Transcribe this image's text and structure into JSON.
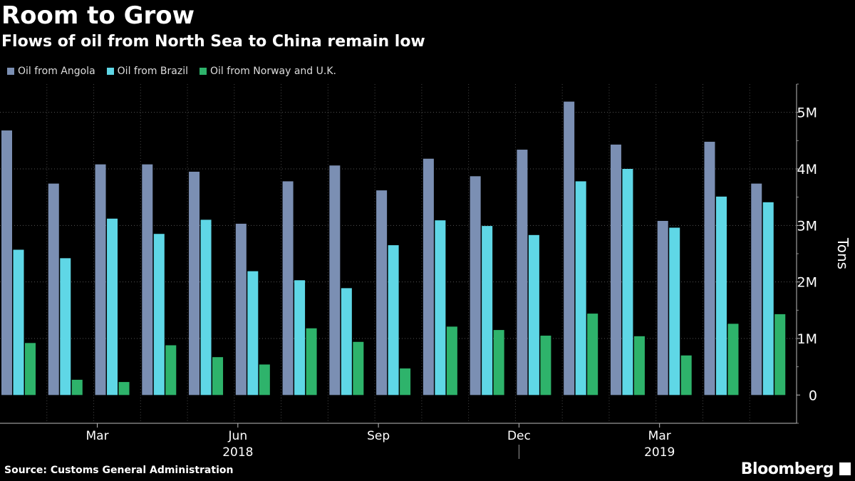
{
  "title": "Room to Grow",
  "subtitle": "Flows of oil from North Sea to China remain low",
  "source": "Source: Customs General Administration",
  "brand": "Bloomberg",
  "chart_data": {
    "type": "bar",
    "ylabel": "Tons",
    "ylim": [
      -500000,
      5500000
    ],
    "yticks": [
      0,
      1000000,
      2000000,
      3000000,
      4000000,
      5000000
    ],
    "ytick_labels": [
      "0",
      "1M",
      "2M",
      "3M",
      "4M",
      "5M"
    ],
    "x_tick_labels": [
      {
        "label": "Mar",
        "index": 2
      },
      {
        "label": "Jun",
        "index": 5
      },
      {
        "label": "Sep",
        "index": 8
      },
      {
        "label": "Dec",
        "index": 11
      },
      {
        "label": "Mar",
        "index": 14
      }
    ],
    "year_labels": [
      {
        "label": "2018",
        "index": 5
      },
      {
        "label": "2019",
        "index": 14
      }
    ],
    "legend_position": "top-left",
    "grid": true,
    "series": [
      {
        "name": "Oil from Angola",
        "color": "#7b8fb3",
        "values": [
          4680000,
          3740000,
          4080000,
          4080000,
          3950000,
          3030000,
          3780000,
          4060000,
          3620000,
          4180000,
          3870000,
          4340000,
          5190000,
          4430000,
          3080000,
          4480000,
          3740000
        ]
      },
      {
        "name": "Oil from Brazil",
        "color": "#5fd7e6",
        "values": [
          2570000,
          2420000,
          3120000,
          2850000,
          3100000,
          2190000,
          2030000,
          1890000,
          2650000,
          3090000,
          2990000,
          2830000,
          3780000,
          4000000,
          2960000,
          3510000,
          3410000
        ]
      },
      {
        "name": "Oil from Norway and U.K.",
        "color": "#2eb36b",
        "values": [
          920000,
          270000,
          230000,
          880000,
          670000,
          540000,
          1180000,
          940000,
          470000,
          1210000,
          1150000,
          1050000,
          1440000,
          1040000,
          700000,
          1260000,
          1430000
        ]
      }
    ]
  }
}
